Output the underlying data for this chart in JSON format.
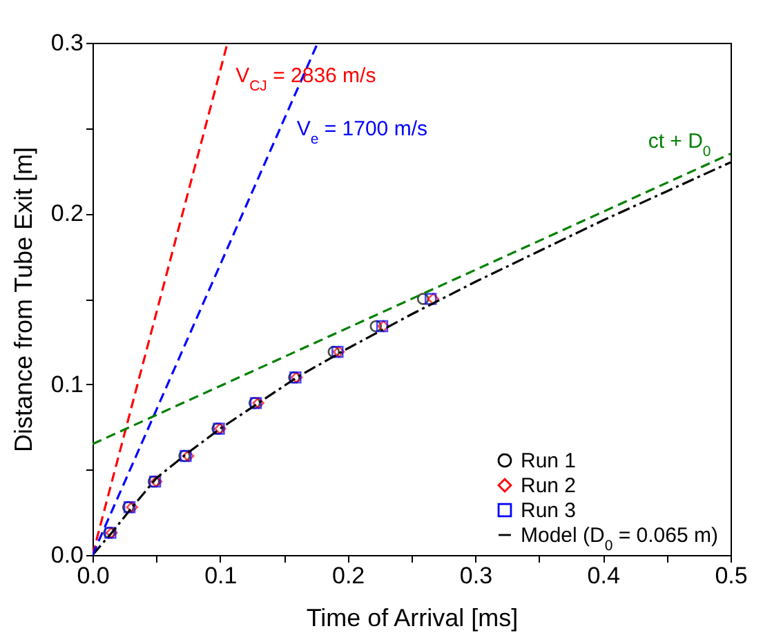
{
  "chart_data": {
    "type": "scatter",
    "xlabel": "Time of Arrival [ms]",
    "ylabel": "Distance from Tube Exit [m]",
    "xlim": [
      0,
      0.5
    ],
    "ylim": [
      0,
      0.3
    ],
    "xticks": [
      {
        "value": 0,
        "label": "0.0"
      },
      {
        "value": 0.05,
        "label": null
      },
      {
        "value": 0.1,
        "label": "0.1"
      },
      {
        "value": 0.15,
        "label": null
      },
      {
        "value": 0.2,
        "label": "0.2"
      },
      {
        "value": 0.25,
        "label": null
      },
      {
        "value": 0.3,
        "label": "0.3"
      },
      {
        "value": 0.35,
        "label": null
      },
      {
        "value": 0.4,
        "label": "0.4"
      },
      {
        "value": 0.45,
        "label": null
      },
      {
        "value": 0.5,
        "label": "0.5"
      }
    ],
    "yticks": [
      {
        "value": 0,
        "label": "0.0"
      },
      {
        "value": 0.05,
        "label": null
      },
      {
        "value": 0.1,
        "label": "0.1"
      },
      {
        "value": 0.15,
        "label": null
      },
      {
        "value": 0.2,
        "label": "0.2"
      },
      {
        "value": 0.25,
        "label": null
      },
      {
        "value": 0.3,
        "label": "0.3"
      }
    ],
    "legend": "bottom right",
    "series": [
      {
        "name": "Run 1",
        "marker": "circle",
        "color": "#000000",
        "x": [
          0.013,
          0.028,
          0.048,
          0.072,
          0.098,
          0.127,
          0.158,
          0.189,
          0.222,
          0.259
        ],
        "values": [
          0.013,
          0.028,
          0.043,
          0.058,
          0.074,
          0.089,
          0.104,
          0.119,
          0.134,
          0.15
        ]
      },
      {
        "name": "Run 2",
        "marker": "diamond",
        "color": "#ff0000",
        "x": [
          0.015,
          0.031,
          0.05,
          0.075,
          0.1,
          0.13,
          0.16,
          0.193,
          0.228,
          0.267
        ],
        "values": [
          0.013,
          0.028,
          0.043,
          0.058,
          0.074,
          0.089,
          0.104,
          0.119,
          0.134,
          0.15
        ]
      },
      {
        "name": "Run 3",
        "marker": "square",
        "color": "#0000ff",
        "x": [
          0.014,
          0.029,
          0.049,
          0.073,
          0.099,
          0.128,
          0.159,
          0.192,
          0.227,
          0.265
        ],
        "values": [
          0.013,
          0.028,
          0.043,
          0.058,
          0.074,
          0.089,
          0.104,
          0.119,
          0.134,
          0.15
        ]
      },
      {
        "name": "Model (D$_{0}$ = 0.065 m)",
        "type": "line",
        "line_style": "dashdot",
        "color": "#000000",
        "x": [
          0,
          0.015,
          0.03,
          0.05,
          0.075,
          0.1,
          0.13,
          0.16,
          0.2,
          0.25,
          0.3,
          0.35,
          0.4,
          0.45,
          0.5
        ],
        "values": [
          0,
          0.013,
          0.027,
          0.045,
          0.06,
          0.074,
          0.089,
          0.104,
          0.121,
          0.141,
          0.16,
          0.178,
          0.196,
          0.213,
          0.23
        ]
      },
      {
        "type": "line",
        "line_style": "dashed",
        "color": "#ff0000",
        "x": [
          0,
          0.1058
        ],
        "values": [
          0,
          0.3
        ]
      },
      {
        "type": "line",
        "line_style": "dashed",
        "color": "#0000ff",
        "x": [
          0,
          0.1765
        ],
        "values": [
          0,
          0.3
        ]
      },
      {
        "type": "line",
        "line_style": "dashed",
        "color": "#008000",
        "x": [
          0,
          0.5
        ],
        "values": [
          0.065,
          0.235
        ]
      }
    ],
    "annotations": [
      {
        "text": "V$_{CJ}$ = 2836 m/s",
        "x": 0.0991,
        "y": 0.281
      },
      {
        "text": "V$_{e}$ = 1700 m/s",
        "x": 0.147,
        "y": 0.25
      },
      {
        "text": "ct + D$_{0}$",
        "x": 0.46,
        "y": 0.2214
      }
    ]
  }
}
